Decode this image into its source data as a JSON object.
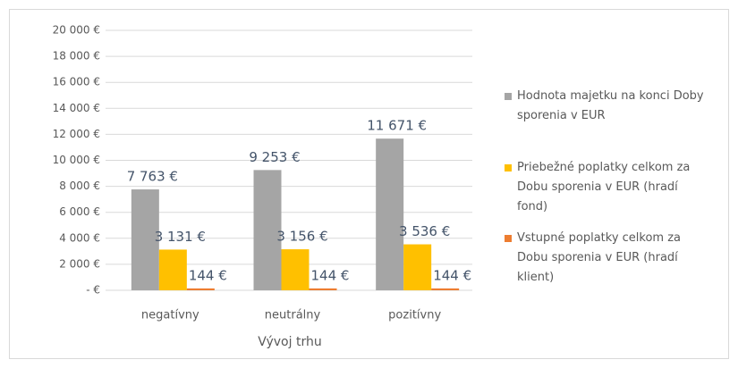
{
  "chart_data": {
    "type": "bar",
    "x_label": "Vývoj trhu",
    "categories": [
      "negatívny",
      "neutrálny",
      "pozitívny"
    ],
    "series": [
      {
        "name": "Hodnota majetku na konci Doby sporenia v EUR",
        "color": "#a5a5a5",
        "values": [
          7763,
          9253,
          11671
        ],
        "value_labels": [
          "7 763 €",
          "9 253 €",
          "11 671 €"
        ]
      },
      {
        "name": "Priebežné poplatky celkom za Dobu sporenia v EUR (hradí fond)",
        "color": "#ffc000",
        "values": [
          3131,
          3156,
          3536
        ],
        "value_labels": [
          "3 131 €",
          "3 156 €",
          "3 536 €"
        ]
      },
      {
        "name": "Vstupné poplatky celkom za Dobu sporenia v EUR (hradí klient)",
        "color": "#ed7d31",
        "values": [
          144,
          144,
          144
        ],
        "value_labels": [
          "144 €",
          "144 €",
          "144 €"
        ]
      }
    ],
    "ylim": [
      0,
      20000
    ],
    "yticks": [
      {
        "value": 0,
        "label": "- €"
      },
      {
        "value": 2000,
        "label": "2 000 €"
      },
      {
        "value": 4000,
        "label": "4 000 €"
      },
      {
        "value": 6000,
        "label": "6 000 €"
      },
      {
        "value": 8000,
        "label": "8 000 €"
      },
      {
        "value": 10000,
        "label": "10 000 €"
      },
      {
        "value": 12000,
        "label": "12 000 €"
      },
      {
        "value": 14000,
        "label": "14 000 €"
      },
      {
        "value": 16000,
        "label": "16 000 €"
      },
      {
        "value": 18000,
        "label": "18 000 €"
      },
      {
        "value": 20000,
        "label": "20 000 €"
      }
    ],
    "grid": true,
    "legend": "right"
  }
}
